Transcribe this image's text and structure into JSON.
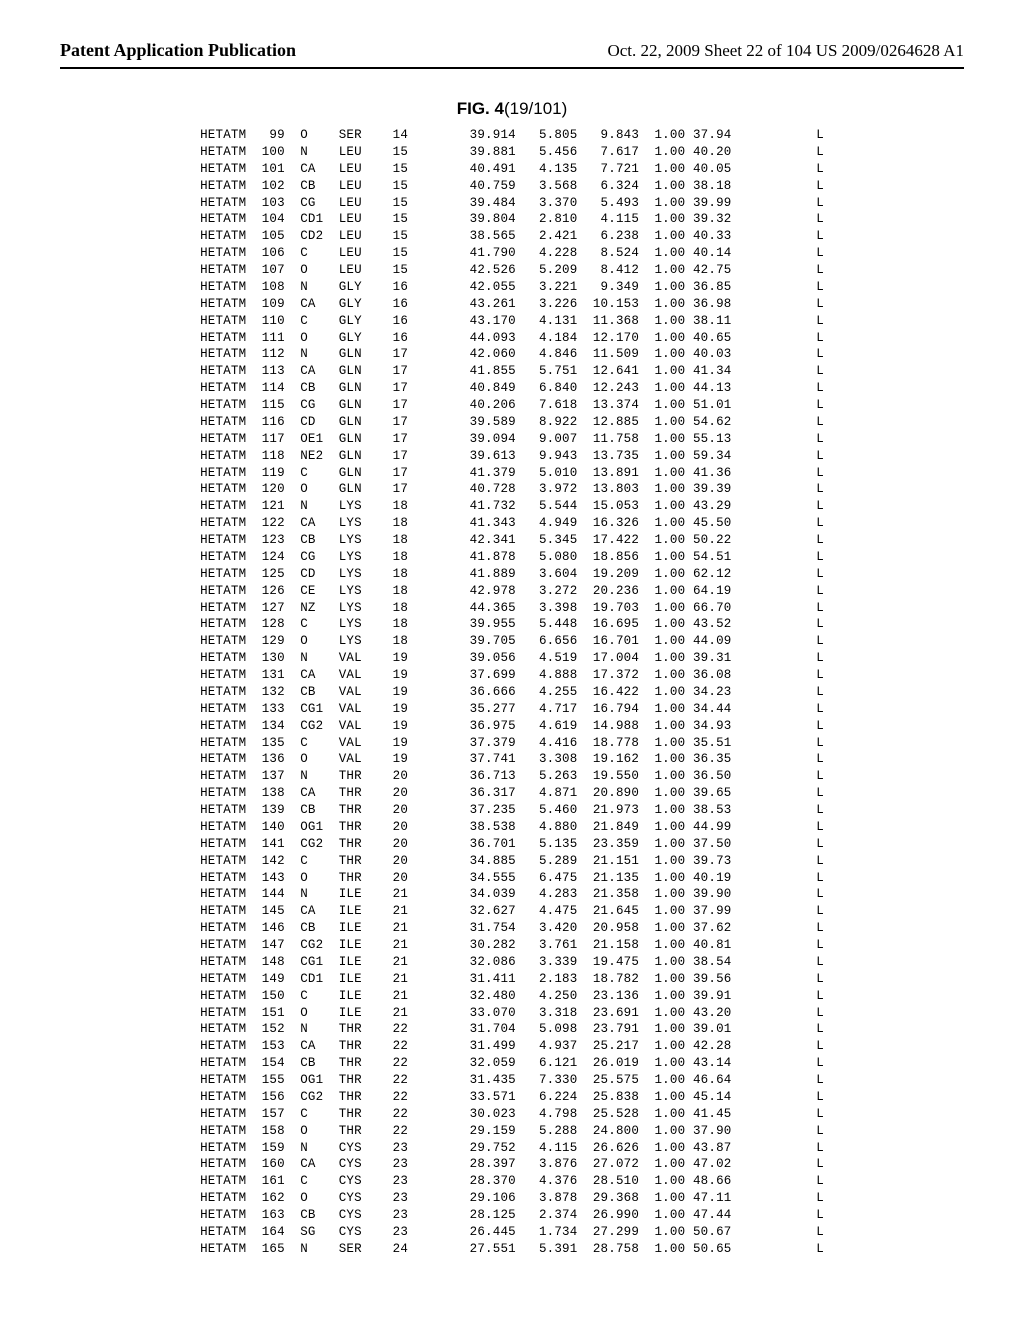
{
  "header": {
    "left": "Patent Application Publication",
    "right": "Oct. 22, 2009  Sheet 22 of 104    US 2009/0264628 A1"
  },
  "figure_label": "FIG. 4",
  "figure_sub": "(19/101)",
  "columns": [
    "record",
    "serial",
    "atom",
    "residue",
    "seq",
    "x",
    "y",
    "z",
    "occ",
    "bfac",
    "chain"
  ],
  "rows": [
    [
      "HETATM",
      " 99",
      "O  ",
      "SER",
      "14",
      "39.914",
      "5.805",
      " 9.843",
      "1.00",
      "37.94",
      "L"
    ],
    [
      "HETATM",
      "100",
      "N  ",
      "LEU",
      "15",
      "39.881",
      "5.456",
      " 7.617",
      "1.00",
      "40.20",
      "L"
    ],
    [
      "HETATM",
      "101",
      "CA ",
      "LEU",
      "15",
      "40.491",
      "4.135",
      " 7.721",
      "1.00",
      "40.05",
      "L"
    ],
    [
      "HETATM",
      "102",
      "CB ",
      "LEU",
      "15",
      "40.759",
      "3.568",
      " 6.324",
      "1.00",
      "38.18",
      "L"
    ],
    [
      "HETATM",
      "103",
      "CG ",
      "LEU",
      "15",
      "39.484",
      "3.370",
      " 5.493",
      "1.00",
      "39.99",
      "L"
    ],
    [
      "HETATM",
      "104",
      "CD1",
      "LEU",
      "15",
      "39.804",
      "2.810",
      " 4.115",
      "1.00",
      "39.32",
      "L"
    ],
    [
      "HETATM",
      "105",
      "CD2",
      "LEU",
      "15",
      "38.565",
      "2.421",
      " 6.238",
      "1.00",
      "40.33",
      "L"
    ],
    [
      "HETATM",
      "106",
      "C  ",
      "LEU",
      "15",
      "41.790",
      "4.228",
      " 8.524",
      "1.00",
      "40.14",
      "L"
    ],
    [
      "HETATM",
      "107",
      "O  ",
      "LEU",
      "15",
      "42.526",
      "5.209",
      " 8.412",
      "1.00",
      "42.75",
      "L"
    ],
    [
      "HETATM",
      "108",
      "N  ",
      "GLY",
      "16",
      "42.055",
      "3.221",
      " 9.349",
      "1.00",
      "36.85",
      "L"
    ],
    [
      "HETATM",
      "109",
      "CA ",
      "GLY",
      "16",
      "43.261",
      "3.226",
      "10.153",
      "1.00",
      "36.98",
      "L"
    ],
    [
      "HETATM",
      "110",
      "C  ",
      "GLY",
      "16",
      "43.170",
      "4.131",
      "11.368",
      "1.00",
      "38.11",
      "L"
    ],
    [
      "HETATM",
      "111",
      "O  ",
      "GLY",
      "16",
      "44.093",
      "4.184",
      "12.170",
      "1.00",
      "40.65",
      "L"
    ],
    [
      "HETATM",
      "112",
      "N  ",
      "GLN",
      "17",
      "42.060",
      "4.846",
      "11.509",
      "1.00",
      "40.03",
      "L"
    ],
    [
      "HETATM",
      "113",
      "CA ",
      "GLN",
      "17",
      "41.855",
      "5.751",
      "12.641",
      "1.00",
      "41.34",
      "L"
    ],
    [
      "HETATM",
      "114",
      "CB ",
      "GLN",
      "17",
      "40.849",
      "6.840",
      "12.243",
      "1.00",
      "44.13",
      "L"
    ],
    [
      "HETATM",
      "115",
      "CG ",
      "GLN",
      "17",
      "40.206",
      "7.618",
      "13.374",
      "1.00",
      "51.01",
      "L"
    ],
    [
      "HETATM",
      "116",
      "CD ",
      "GLN",
      "17",
      "39.589",
      "8.922",
      "12.885",
      "1.00",
      "54.62",
      "L"
    ],
    [
      "HETATM",
      "117",
      "OE1",
      "GLN",
      "17",
      "39.094",
      "9.007",
      "11.758",
      "1.00",
      "55.13",
      "L"
    ],
    [
      "HETATM",
      "118",
      "NE2",
      "GLN",
      "17",
      "39.613",
      "9.943",
      "13.735",
      "1.00",
      "59.34",
      "L"
    ],
    [
      "HETATM",
      "119",
      "C  ",
      "GLN",
      "17",
      "41.379",
      "5.010",
      "13.891",
      "1.00",
      "41.36",
      "L"
    ],
    [
      "HETATM",
      "120",
      "O  ",
      "GLN",
      "17",
      "40.728",
      "3.972",
      "13.803",
      "1.00",
      "39.39",
      "L"
    ],
    [
      "HETATM",
      "121",
      "N  ",
      "LYS",
      "18",
      "41.732",
      "5.544",
      "15.053",
      "1.00",
      "43.29",
      "L"
    ],
    [
      "HETATM",
      "122",
      "CA ",
      "LYS",
      "18",
      "41.343",
      "4.949",
      "16.326",
      "1.00",
      "45.50",
      "L"
    ],
    [
      "HETATM",
      "123",
      "CB ",
      "LYS",
      "18",
      "42.341",
      "5.345",
      "17.422",
      "1.00",
      "50.22",
      "L"
    ],
    [
      "HETATM",
      "124",
      "CG ",
      "LYS",
      "18",
      "41.878",
      "5.080",
      "18.856",
      "1.00",
      "54.51",
      "L"
    ],
    [
      "HETATM",
      "125",
      "CD ",
      "LYS",
      "18",
      "41.889",
      "3.604",
      "19.209",
      "1.00",
      "62.12",
      "L"
    ],
    [
      "HETATM",
      "126",
      "CE ",
      "LYS",
      "18",
      "42.978",
      "3.272",
      "20.236",
      "1.00",
      "64.19",
      "L"
    ],
    [
      "HETATM",
      "127",
      "NZ ",
      "LYS",
      "18",
      "44.365",
      "3.398",
      "19.703",
      "1.00",
      "66.70",
      "L"
    ],
    [
      "HETATM",
      "128",
      "C  ",
      "LYS",
      "18",
      "39.955",
      "5.448",
      "16.695",
      "1.00",
      "43.52",
      "L"
    ],
    [
      "HETATM",
      "129",
      "O  ",
      "LYS",
      "18",
      "39.705",
      "6.656",
      "16.701",
      "1.00",
      "44.09",
      "L"
    ],
    [
      "HETATM",
      "130",
      "N  ",
      "VAL",
      "19",
      "39.056",
      "4.519",
      "17.004",
      "1.00",
      "39.31",
      "L"
    ],
    [
      "HETATM",
      "131",
      "CA ",
      "VAL",
      "19",
      "37.699",
      "4.888",
      "17.372",
      "1.00",
      "36.08",
      "L"
    ],
    [
      "HETATM",
      "132",
      "CB ",
      "VAL",
      "19",
      "36.666",
      "4.255",
      "16.422",
      "1.00",
      "34.23",
      "L"
    ],
    [
      "HETATM",
      "133",
      "CG1",
      "VAL",
      "19",
      "35.277",
      "4.717",
      "16.794",
      "1.00",
      "34.44",
      "L"
    ],
    [
      "HETATM",
      "134",
      "CG2",
      "VAL",
      "19",
      "36.975",
      "4.619",
      "14.988",
      "1.00",
      "34.93",
      "L"
    ],
    [
      "HETATM",
      "135",
      "C  ",
      "VAL",
      "19",
      "37.379",
      "4.416",
      "18.778",
      "1.00",
      "35.51",
      "L"
    ],
    [
      "HETATM",
      "136",
      "O  ",
      "VAL",
      "19",
      "37.741",
      "3.308",
      "19.162",
      "1.00",
      "36.35",
      "L"
    ],
    [
      "HETATM",
      "137",
      "N  ",
      "THR",
      "20",
      "36.713",
      "5.263",
      "19.550",
      "1.00",
      "36.50",
      "L"
    ],
    [
      "HETATM",
      "138",
      "CA ",
      "THR",
      "20",
      "36.317",
      "4.871",
      "20.890",
      "1.00",
      "39.65",
      "L"
    ],
    [
      "HETATM",
      "139",
      "CB ",
      "THR",
      "20",
      "37.235",
      "5.460",
      "21.973",
      "1.00",
      "38.53",
      "L"
    ],
    [
      "HETATM",
      "140",
      "OG1",
      "THR",
      "20",
      "38.538",
      "4.880",
      "21.849",
      "1.00",
      "44.99",
      "L"
    ],
    [
      "HETATM",
      "141",
      "CG2",
      "THR",
      "20",
      "36.701",
      "5.135",
      "23.359",
      "1.00",
      "37.50",
      "L"
    ],
    [
      "HETATM",
      "142",
      "C  ",
      "THR",
      "20",
      "34.885",
      "5.289",
      "21.151",
      "1.00",
      "39.73",
      "L"
    ],
    [
      "HETATM",
      "143",
      "O  ",
      "THR",
      "20",
      "34.555",
      "6.475",
      "21.135",
      "1.00",
      "40.19",
      "L"
    ],
    [
      "HETATM",
      "144",
      "N  ",
      "ILE",
      "21",
      "34.039",
      "4.283",
      "21.358",
      "1.00",
      "39.90",
      "L"
    ],
    [
      "HETATM",
      "145",
      "CA ",
      "ILE",
      "21",
      "32.627",
      "4.475",
      "21.645",
      "1.00",
      "37.99",
      "L"
    ],
    [
      "HETATM",
      "146",
      "CB ",
      "ILE",
      "21",
      "31.754",
      "3.420",
      "20.958",
      "1.00",
      "37.62",
      "L"
    ],
    [
      "HETATM",
      "147",
      "CG2",
      "ILE",
      "21",
      "30.282",
      "3.761",
      "21.158",
      "1.00",
      "40.81",
      "L"
    ],
    [
      "HETATM",
      "148",
      "CG1",
      "ILE",
      "21",
      "32.086",
      "3.339",
      "19.475",
      "1.00",
      "38.54",
      "L"
    ],
    [
      "HETATM",
      "149",
      "CD1",
      "ILE",
      "21",
      "31.411",
      "2.183",
      "18.782",
      "1.00",
      "39.56",
      "L"
    ],
    [
      "HETATM",
      "150",
      "C  ",
      "ILE",
      "21",
      "32.480",
      "4.250",
      "23.136",
      "1.00",
      "39.91",
      "L"
    ],
    [
      "HETATM",
      "151",
      "O  ",
      "ILE",
      "21",
      "33.070",
      "3.318",
      "23.691",
      "1.00",
      "43.20",
      "L"
    ],
    [
      "HETATM",
      "152",
      "N  ",
      "THR",
      "22",
      "31.704",
      "5.098",
      "23.791",
      "1.00",
      "39.01",
      "L"
    ],
    [
      "HETATM",
      "153",
      "CA ",
      "THR",
      "22",
      "31.499",
      "4.937",
      "25.217",
      "1.00",
      "42.28",
      "L"
    ],
    [
      "HETATM",
      "154",
      "CB ",
      "THR",
      "22",
      "32.059",
      "6.121",
      "26.019",
      "1.00",
      "43.14",
      "L"
    ],
    [
      "HETATM",
      "155",
      "OG1",
      "THR",
      "22",
      "31.435",
      "7.330",
      "25.575",
      "1.00",
      "46.64",
      "L"
    ],
    [
      "HETATM",
      "156",
      "CG2",
      "THR",
      "22",
      "33.571",
      "6.224",
      "25.838",
      "1.00",
      "45.14",
      "L"
    ],
    [
      "HETATM",
      "157",
      "C  ",
      "THR",
      "22",
      "30.023",
      "4.798",
      "25.528",
      "1.00",
      "41.45",
      "L"
    ],
    [
      "HETATM",
      "158",
      "O  ",
      "THR",
      "22",
      "29.159",
      "5.288",
      "24.800",
      "1.00",
      "37.90",
      "L"
    ],
    [
      "HETATM",
      "159",
      "N  ",
      "CYS",
      "23",
      "29.752",
      "4.115",
      "26.626",
      "1.00",
      "43.87",
      "L"
    ],
    [
      "HETATM",
      "160",
      "CA ",
      "CYS",
      "23",
      "28.397",
      "3.876",
      "27.072",
      "1.00",
      "47.02",
      "L"
    ],
    [
      "HETATM",
      "161",
      "C  ",
      "CYS",
      "23",
      "28.370",
      "4.376",
      "28.510",
      "1.00",
      "48.66",
      "L"
    ],
    [
      "HETATM",
      "162",
      "O  ",
      "CYS",
      "23",
      "29.106",
      "3.878",
      "29.368",
      "1.00",
      "47.11",
      "L"
    ],
    [
      "HETATM",
      "163",
      "CB ",
      "CYS",
      "23",
      "28.125",
      "2.374",
      "26.990",
      "1.00",
      "47.44",
      "L"
    ],
    [
      "HETATM",
      "164",
      "SG ",
      "CYS",
      "23",
      "26.445",
      "1.734",
      "27.299",
      "1.00",
      "50.67",
      "L"
    ],
    [
      "HETATM",
      "165",
      "N  ",
      "SER",
      "24",
      "27.551",
      "5.391",
      "28.758",
      "1.00",
      "50.65",
      "L"
    ]
  ]
}
